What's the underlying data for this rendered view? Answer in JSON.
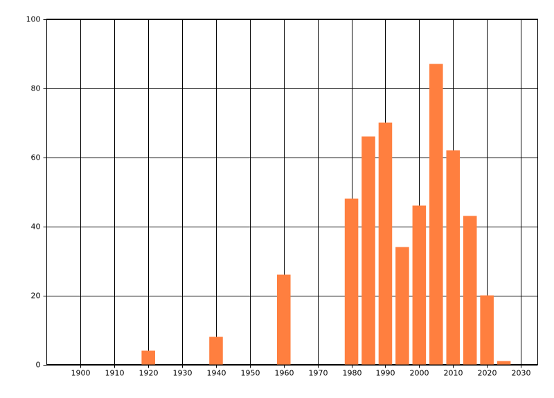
{
  "chart_data": {
    "type": "bar",
    "x": [
      1920,
      1940,
      1960,
      1980,
      1985,
      1990,
      1995,
      2000,
      2005,
      2010,
      2015,
      2020,
      2025
    ],
    "values": [
      4,
      8,
      26,
      48,
      66,
      70,
      34,
      46,
      87,
      62,
      43,
      20,
      1
    ],
    "color": "#ff7f3f",
    "xlim": [
      1890,
      2035
    ],
    "xticks": [
      1900,
      1910,
      1920,
      1930,
      1940,
      1950,
      1960,
      1970,
      1980,
      1990,
      2000,
      2010,
      2020,
      2030
    ],
    "ylim": [
      0,
      100
    ],
    "yticks": [
      0,
      20,
      40,
      60,
      80,
      100
    ],
    "grid": true
  }
}
